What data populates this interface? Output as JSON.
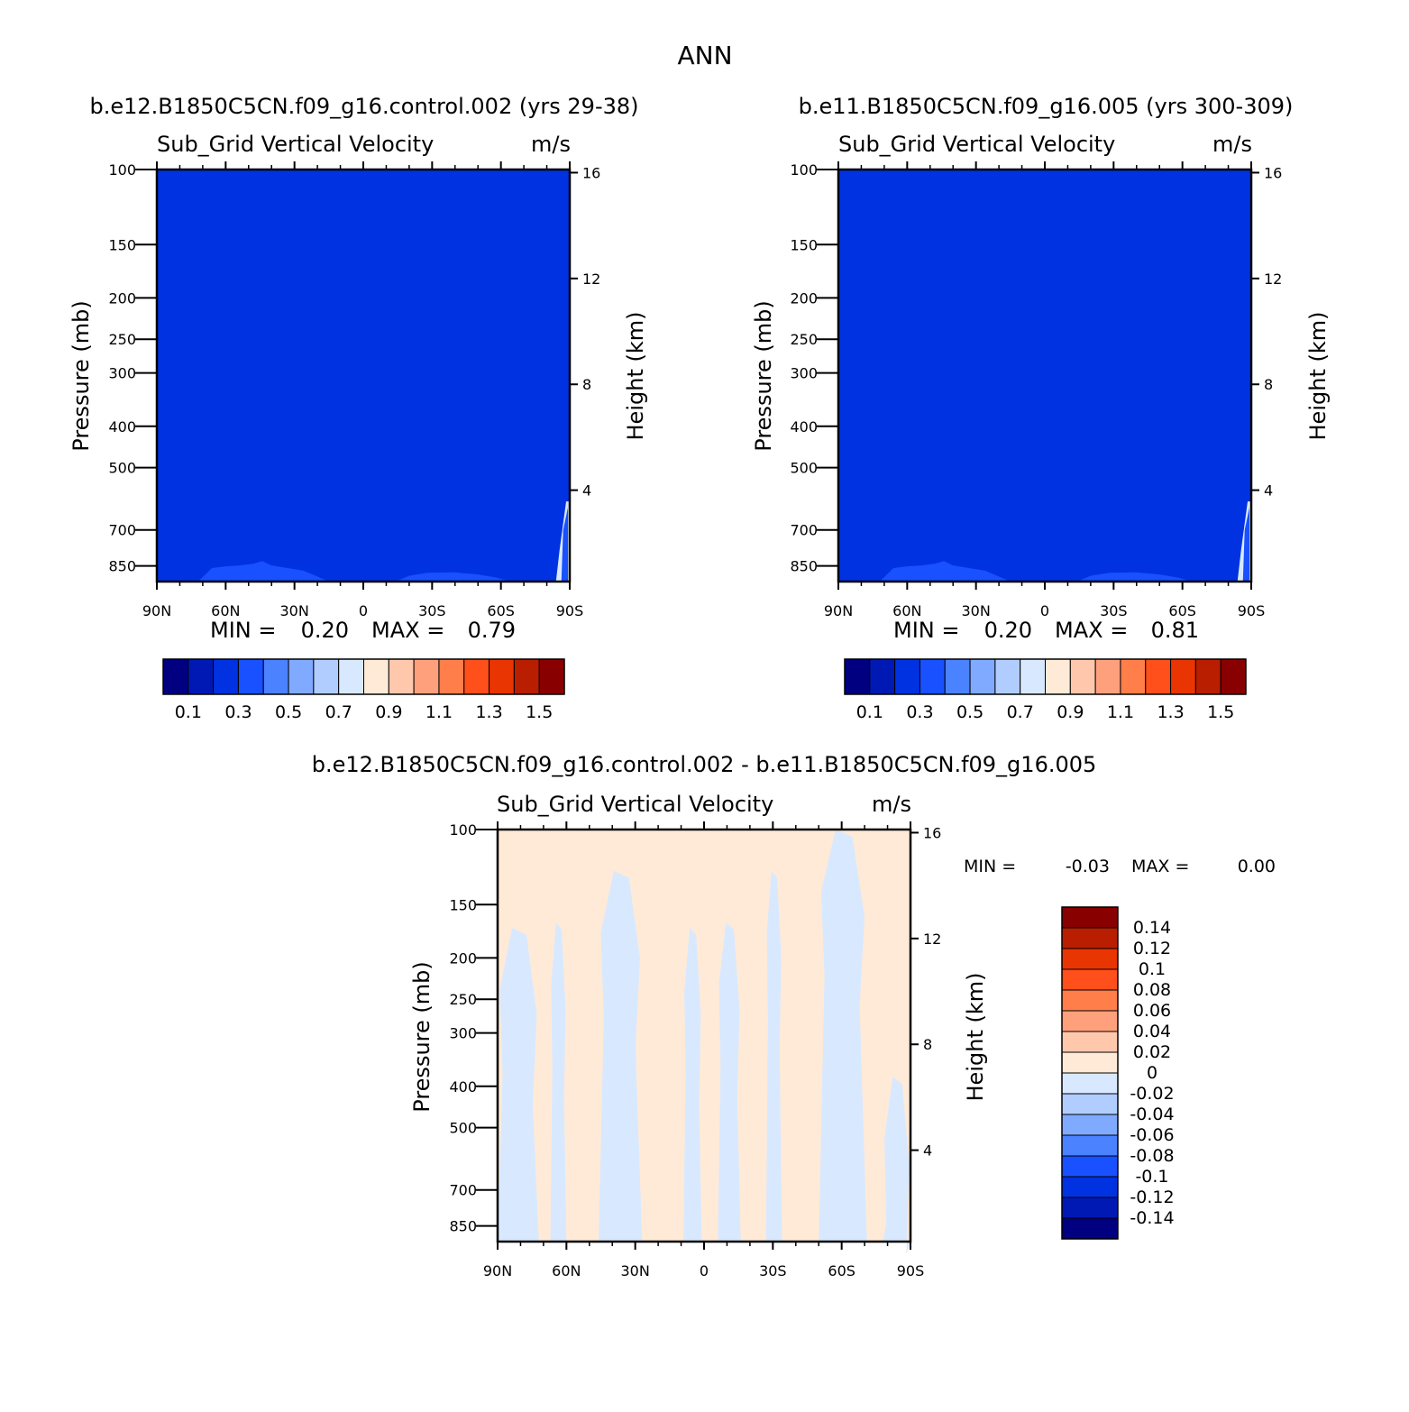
{
  "figure_title": "ANN",
  "colors": {
    "scale16": [
      "#000080",
      "#0019b4",
      "#0032e1",
      "#1950ff",
      "#4b82ff",
      "#7faaff",
      "#b1cdff",
      "#d8e9ff",
      "#ffead7",
      "#ffc8ad",
      "#ffa07d",
      "#ff7e4a",
      "#ff4f1a",
      "#e83502",
      "#b91e00",
      "#890000"
    ],
    "mean_field": "#0032e1",
    "low_band": "#1950ff",
    "edge_pale": "#d8e9ff",
    "diff_positive": "#ffead7",
    "diff_negative": "#d8e9ff"
  },
  "axes": {
    "ylabel": "Pressure (mb)",
    "y2label": "Height (km)",
    "pressure_ticks": [
      "100",
      "150",
      "200",
      "250",
      "300",
      "400",
      "500",
      "700",
      "850"
    ],
    "height_ticks": [
      "16",
      "12",
      "8",
      "4"
    ],
    "lat_ticks": [
      "90N",
      "60N",
      "30N",
      "0",
      "30S",
      "60S",
      "90S"
    ]
  },
  "panels": {
    "p1": {
      "case_title": "b.e12.B1850C5CN.f09_g16.control.002 (yrs 29-38)",
      "var_title": "Sub_Grid Vertical Velocity",
      "units": "m/s",
      "min_label": "MIN =",
      "min_value": "0.20",
      "max_label": "MAX =",
      "max_value": "0.79"
    },
    "p2": {
      "case_title": "b.e11.B1850C5CN.f09_g16.005 (yrs 300-309)",
      "var_title": "Sub_Grid Vertical Velocity",
      "units": "m/s",
      "min_label": "MIN =",
      "min_value": "0.20",
      "max_label": "MAX =",
      "max_value": "0.81"
    },
    "p3": {
      "case_title": "b.e12.B1850C5CN.f09_g16.control.002 - b.e11.B1850C5CN.f09_g16.005",
      "var_title": "Sub_Grid Vertical Velocity",
      "units": "m/s",
      "min_label": "MIN =",
      "min_value": "-0.03",
      "max_label": "MAX =",
      "max_value": "0.00"
    }
  },
  "colorbar_mean": {
    "labels": [
      "0.1",
      "0.3",
      "0.5",
      "0.7",
      "0.9",
      "1.1",
      "1.3",
      "1.5"
    ]
  },
  "colorbar_diff": {
    "labels": [
      "0.14",
      "0.12",
      "0.1",
      "0.08",
      "0.06",
      "0.04",
      "0.02",
      "0",
      "-0.02",
      "-0.04",
      "-0.06",
      "-0.08",
      "-0.1",
      "-0.12",
      "-0.14"
    ]
  },
  "chart_data": [
    {
      "type": "heatmap",
      "title": "Sub_Grid Vertical Velocity",
      "units": "m/s",
      "case": "b.e12.B1850C5CN.f09_g16.control.002 (yrs 29-38)",
      "xlabel": "",
      "ylabel": "Pressure (mb)",
      "y2label": "Height (km)",
      "x_ticks": [
        "90N",
        "60N",
        "30N",
        "0",
        "30S",
        "60S",
        "90S"
      ],
      "y_ticks_mb": [
        100,
        150,
        200,
        250,
        300,
        400,
        500,
        700,
        850
      ],
      "y2_ticks_km": [
        16,
        12,
        8,
        4
      ],
      "levels": [
        0.1,
        0.2,
        0.3,
        0.4,
        0.5,
        0.6,
        0.7,
        0.8,
        0.9,
        1.0,
        1.1,
        1.2,
        1.3,
        1.4,
        1.5
      ],
      "min": 0.2,
      "max": 0.79,
      "background_bin": [
        0.2,
        0.3
      ],
      "low_band_bin": [
        0.3,
        0.4
      ],
      "low_band_top_mb": [
        [
          72,
          925
        ],
        [
          66,
          860
        ],
        [
          60,
          852
        ],
        [
          54,
          848
        ],
        [
          48,
          840
        ],
        [
          44,
          828
        ],
        [
          40,
          848
        ],
        [
          34,
          858
        ],
        [
          26,
          872
        ],
        [
          20,
          900
        ],
        [
          15,
          925
        ],
        [
          10,
          925
        ],
        [
          -14,
          925
        ],
        [
          -20,
          896
        ],
        [
          -28,
          882
        ],
        [
          -40,
          880
        ],
        [
          -50,
          890
        ],
        [
          -58,
          905
        ],
        [
          -64,
          925
        ]
      ],
      "pale_edge_lat_from": -84
    },
    {
      "type": "heatmap",
      "title": "Sub_Grid Vertical Velocity",
      "units": "m/s",
      "case": "b.e11.B1850C5CN.f09_g16.005 (yrs 300-309)",
      "xlabel": "",
      "ylabel": "Pressure (mb)",
      "y2label": "Height (km)",
      "x_ticks": [
        "90N",
        "60N",
        "30N",
        "0",
        "30S",
        "60S",
        "90S"
      ],
      "y_ticks_mb": [
        100,
        150,
        200,
        250,
        300,
        400,
        500,
        700,
        850
      ],
      "y2_ticks_km": [
        16,
        12,
        8,
        4
      ],
      "levels": [
        0.1,
        0.2,
        0.3,
        0.4,
        0.5,
        0.6,
        0.7,
        0.8,
        0.9,
        1.0,
        1.1,
        1.2,
        1.3,
        1.4,
        1.5
      ],
      "min": 0.2,
      "max": 0.81,
      "background_bin": [
        0.2,
        0.3
      ],
      "low_band_bin": [
        0.3,
        0.4
      ],
      "low_band_top_mb": [
        [
          72,
          925
        ],
        [
          66,
          860
        ],
        [
          60,
          852
        ],
        [
          54,
          848
        ],
        [
          48,
          840
        ],
        [
          44,
          828
        ],
        [
          40,
          848
        ],
        [
          34,
          858
        ],
        [
          26,
          872
        ],
        [
          20,
          900
        ],
        [
          15,
          925
        ],
        [
          10,
          925
        ],
        [
          -14,
          925
        ],
        [
          -20,
          896
        ],
        [
          -28,
          882
        ],
        [
          -40,
          880
        ],
        [
          -50,
          890
        ],
        [
          -58,
          905
        ],
        [
          -64,
          925
        ]
      ],
      "pale_edge_lat_from": -84
    },
    {
      "type": "heatmap",
      "title": "Sub_Grid Vertical Velocity",
      "units": "m/s",
      "case": "b.e12.B1850C5CN.f09_g16.control.002 - b.e11.B1850C5CN.f09_g16.005",
      "xlabel": "",
      "ylabel": "Pressure (mb)",
      "y2label": "Height (km)",
      "x_ticks": [
        "90N",
        "60N",
        "30N",
        "0",
        "30S",
        "60S",
        "90S"
      ],
      "y_ticks_mb": [
        100,
        150,
        200,
        250,
        300,
        400,
        500,
        700,
        850
      ],
      "y2_ticks_km": [
        16,
        12,
        8,
        4
      ],
      "levels": [
        -0.14,
        -0.12,
        -0.1,
        -0.08,
        -0.06,
        -0.04,
        -0.02,
        0,
        0.02,
        0.04,
        0.06,
        0.08,
        0.1,
        0.12,
        0.14
      ],
      "min": -0.03,
      "max": 0.0,
      "positive_bin": [
        0,
        0.02
      ],
      "negative_bin": [
        -0.02,
        0
      ],
      "negative_regions": [
        {
          "lat_north": 90,
          "lat_south": 72,
          "top_mb": 170
        },
        {
          "lat_north": 67,
          "lat_south": 60,
          "top_mb": 165
        },
        {
          "lat_north": 46,
          "lat_south": 27,
          "top_mb": 125
        },
        {
          "lat_north": 9,
          "lat_south": 1,
          "top_mb": 170
        },
        {
          "lat_north": -6,
          "lat_south": -16,
          "top_mb": 165
        },
        {
          "lat_north": -27,
          "lat_south": -34,
          "top_mb": 125
        },
        {
          "lat_north": -50,
          "lat_south": -71,
          "top_mb": 100
        },
        {
          "lat_north": -78,
          "lat_south": -90,
          "top_mb": 380
        }
      ]
    }
  ]
}
